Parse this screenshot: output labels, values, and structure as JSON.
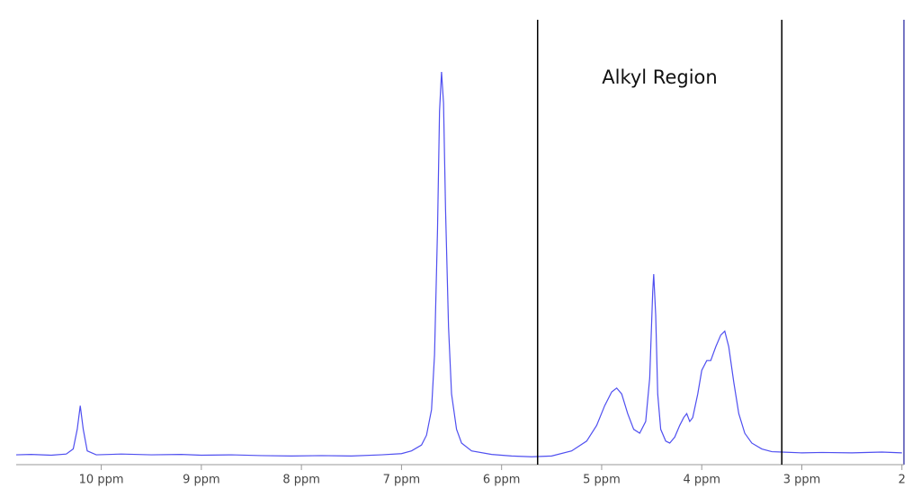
{
  "chart_data": {
    "type": "line",
    "series": [
      {
        "color": "#4f4ff0",
        "x": [
          10.85,
          10.7,
          10.5,
          10.35,
          10.28,
          10.24,
          10.21,
          10.18,
          10.14,
          10.05,
          9.8,
          9.5,
          9.2,
          9.0,
          8.7,
          8.4,
          8.1,
          7.8,
          7.5,
          7.2,
          7.0,
          6.9,
          6.8,
          6.75,
          6.7,
          6.67,
          6.64,
          6.62,
          6.6,
          6.58,
          6.56,
          6.53,
          6.5,
          6.45,
          6.4,
          6.3,
          6.1,
          5.9,
          5.7,
          5.5,
          5.3,
          5.15,
          5.05,
          4.97,
          4.9,
          4.85,
          4.8,
          4.74,
          4.68,
          4.62,
          4.56,
          4.52,
          4.49,
          4.48,
          4.46,
          4.44,
          4.41,
          4.36,
          4.32,
          4.27,
          4.22,
          4.18,
          4.15,
          4.12,
          4.09,
          4.04,
          4.0,
          3.95,
          3.91,
          3.86,
          3.81,
          3.77,
          3.73,
          3.68,
          3.63,
          3.57,
          3.5,
          3.4,
          3.3,
          3.2,
          3.0,
          2.8,
          2.5,
          2.2,
          2.0
        ],
        "values": [
          2.5,
          2.6,
          2.4,
          2.7,
          4,
          9,
          15,
          9,
          3.5,
          2.5,
          2.7,
          2.5,
          2.6,
          2.4,
          2.5,
          2.3,
          2.2,
          2.3,
          2.2,
          2.5,
          2.8,
          3.5,
          5,
          7.5,
          14,
          28,
          60,
          90,
          100,
          92,
          65,
          35,
          18,
          9,
          5.5,
          3.5,
          2.6,
          2.2,
          2.0,
          2.2,
          3.5,
          6,
          10,
          15,
          18.5,
          19.5,
          18,
          13,
          9,
          8,
          11,
          22,
          44,
          48.5,
          38,
          18,
          9,
          6,
          5.5,
          7,
          10,
          12,
          13,
          11,
          12,
          18,
          24,
          26.5,
          26.5,
          30,
          33,
          34,
          30,
          21,
          13,
          8,
          5.5,
          4,
          3.3,
          3.2,
          3.0,
          3.1,
          3.0,
          3.2,
          3.0
        ]
      }
    ],
    "xlim": [
      10.85,
      1.98
    ],
    "xticks": [
      {
        "value": 10,
        "label": "10 ppm"
      },
      {
        "value": 9,
        "label": "9 ppm"
      },
      {
        "value": 8,
        "label": "8 ppm"
      },
      {
        "value": 7,
        "label": "7 ppm"
      },
      {
        "value": 6,
        "label": "6 ppm"
      },
      {
        "value": 5,
        "label": "5 ppm"
      },
      {
        "value": 4,
        "label": "4 ppm"
      },
      {
        "value": 3,
        "label": "3 ppm"
      },
      2
    ],
    "ylim": [
      0,
      100
    ],
    "region": {
      "label": "Alkyl Region",
      "from": 5.64,
      "to": 3.2
    }
  }
}
